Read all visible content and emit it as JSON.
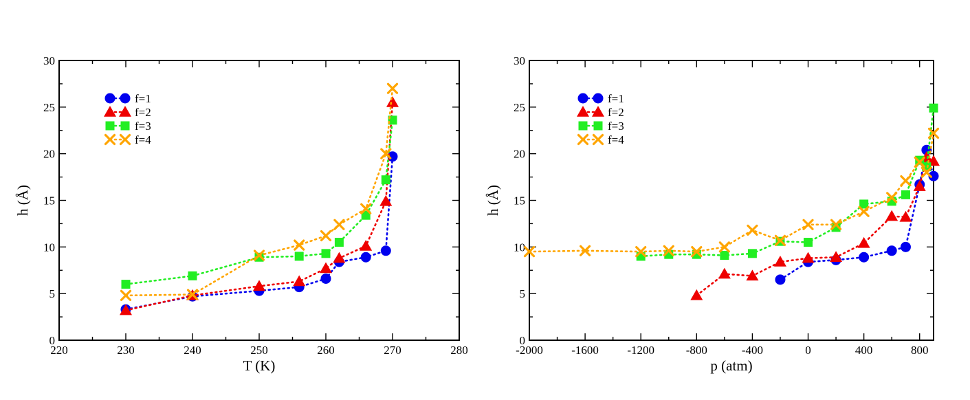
{
  "colors": {
    "f1": "#0000ee",
    "f2": "#ee0000",
    "f3": "#22ee22",
    "f4": "#ffa500"
  },
  "chart_data": [
    {
      "type": "line",
      "title": "",
      "xlabel": "T (K)",
      "ylabel": "h (Å)",
      "xlim": [
        220,
        280
      ],
      "ylim": [
        0,
        30
      ],
      "xticks": [
        220,
        230,
        240,
        250,
        260,
        270,
        280
      ],
      "yticks": [
        0,
        5,
        10,
        15,
        20,
        25,
        30
      ],
      "xtick_labels": [
        "220",
        "230",
        "240",
        "250",
        "260",
        "270",
        "280"
      ],
      "ytick_labels": [
        "0",
        "5",
        "10",
        "15",
        "20",
        "25",
        "30"
      ],
      "legend_position": "top-left",
      "series": [
        {
          "name": "f=1",
          "marker": "circle",
          "color": "#0000ee",
          "points": [
            [
              230,
              3.3
            ],
            [
              240,
              4.7
            ],
            [
              250,
              5.3
            ],
            [
              256,
              5.7
            ],
            [
              260,
              6.6
            ],
            [
              262,
              8.4
            ],
            [
              266,
              8.9
            ],
            [
              269,
              9.6
            ],
            [
              270,
              19.7
            ]
          ]
        },
        {
          "name": "f=2",
          "marker": "triangle",
          "color": "#ee0000",
          "points": [
            [
              230,
              3.2
            ],
            [
              240,
              4.8
            ],
            [
              250,
              5.8
            ],
            [
              256,
              6.3
            ],
            [
              260,
              7.7
            ],
            [
              262,
              8.8
            ],
            [
              266,
              10.1
            ],
            [
              269,
              14.9
            ],
            [
              270,
              25.5
            ]
          ]
        },
        {
          "name": "f=3",
          "marker": "square",
          "color": "#22ee22",
          "points": [
            [
              230,
              6.0
            ],
            [
              240,
              6.9
            ],
            [
              250,
              8.9
            ],
            [
              256,
              9.0
            ],
            [
              260,
              9.3
            ],
            [
              262,
              10.5
            ],
            [
              266,
              13.4
            ],
            [
              269,
              17.2
            ],
            [
              270,
              23.6
            ]
          ]
        },
        {
          "name": "f=4",
          "marker": "x",
          "color": "#ffa500",
          "points": [
            [
              230,
              4.8
            ],
            [
              240,
              4.9
            ],
            [
              250,
              9.1
            ],
            [
              256,
              10.2
            ],
            [
              260,
              11.2
            ],
            [
              262,
              12.4
            ],
            [
              266,
              14.1
            ],
            [
              269,
              20.0
            ],
            [
              270,
              27.0
            ]
          ]
        }
      ]
    },
    {
      "type": "line",
      "title": "",
      "xlabel": "p (atm)",
      "ylabel": "h (Å)",
      "xlim": [
        -2000,
        900
      ],
      "ylim": [
        0,
        30
      ],
      "xticks": [
        -2000,
        -1600,
        -1200,
        -800,
        -400,
        0,
        400,
        800
      ],
      "yticks": [
        0,
        5,
        10,
        15,
        20,
        25,
        30
      ],
      "xtick_labels": [
        "-2000",
        "-1600",
        "-1200",
        "-800",
        "-400",
        "0",
        "400",
        "800"
      ],
      "ytick_labels": [
        "0",
        "5",
        "10",
        "15",
        "20",
        "25",
        "30"
      ],
      "legend_position": "top-left",
      "series": [
        {
          "name": "f=1",
          "marker": "circle",
          "color": "#0000ee",
          "points": [
            [
              -200,
              6.5
            ],
            [
              0,
              8.4
            ],
            [
              200,
              8.6
            ],
            [
              400,
              8.9
            ],
            [
              600,
              9.6
            ],
            [
              700,
              10.0
            ],
            [
              800,
              16.7
            ],
            [
              850,
              20.4
            ],
            [
              900,
              17.6
            ]
          ]
        },
        {
          "name": "f=2",
          "marker": "triangle",
          "color": "#ee0000",
          "points": [
            [
              -800,
              4.8
            ],
            [
              -600,
              7.1
            ],
            [
              -400,
              6.9
            ],
            [
              -200,
              8.4
            ],
            [
              0,
              8.8
            ],
            [
              200,
              8.9
            ],
            [
              400,
              10.4
            ],
            [
              600,
              13.3
            ],
            [
              700,
              13.2
            ],
            [
              800,
              16.5
            ],
            [
              850,
              19.6
            ],
            [
              900,
              19.2
            ]
          ]
        },
        {
          "name": "f=3",
          "marker": "square",
          "color": "#22ee22",
          "points": [
            [
              -1200,
              9.0
            ],
            [
              -1000,
              9.2
            ],
            [
              -800,
              9.2
            ],
            [
              -600,
              9.1
            ],
            [
              -400,
              9.3
            ],
            [
              -200,
              10.6
            ],
            [
              0,
              10.5
            ],
            [
              200,
              12.1
            ],
            [
              400,
              14.6
            ],
            [
              600,
              14.9
            ],
            [
              700,
              15.6
            ],
            [
              800,
              19.3
            ],
            [
              850,
              18.6
            ],
            [
              900,
              24.9
            ]
          ]
        },
        {
          "name": "f=4",
          "marker": "x",
          "color": "#ffa500",
          "points": [
            [
              -2000,
              9.5
            ],
            [
              -1600,
              9.6
            ],
            [
              -1200,
              9.5
            ],
            [
              -1000,
              9.6
            ],
            [
              -800,
              9.5
            ],
            [
              -600,
              10.0
            ],
            [
              -400,
              11.8
            ],
            [
              -200,
              10.7
            ],
            [
              0,
              12.4
            ],
            [
              200,
              12.4
            ],
            [
              400,
              13.8
            ],
            [
              600,
              15.3
            ],
            [
              700,
              17.1
            ],
            [
              800,
              19.1
            ],
            [
              850,
              18.0
            ],
            [
              900,
              22.2
            ]
          ]
        }
      ]
    }
  ]
}
